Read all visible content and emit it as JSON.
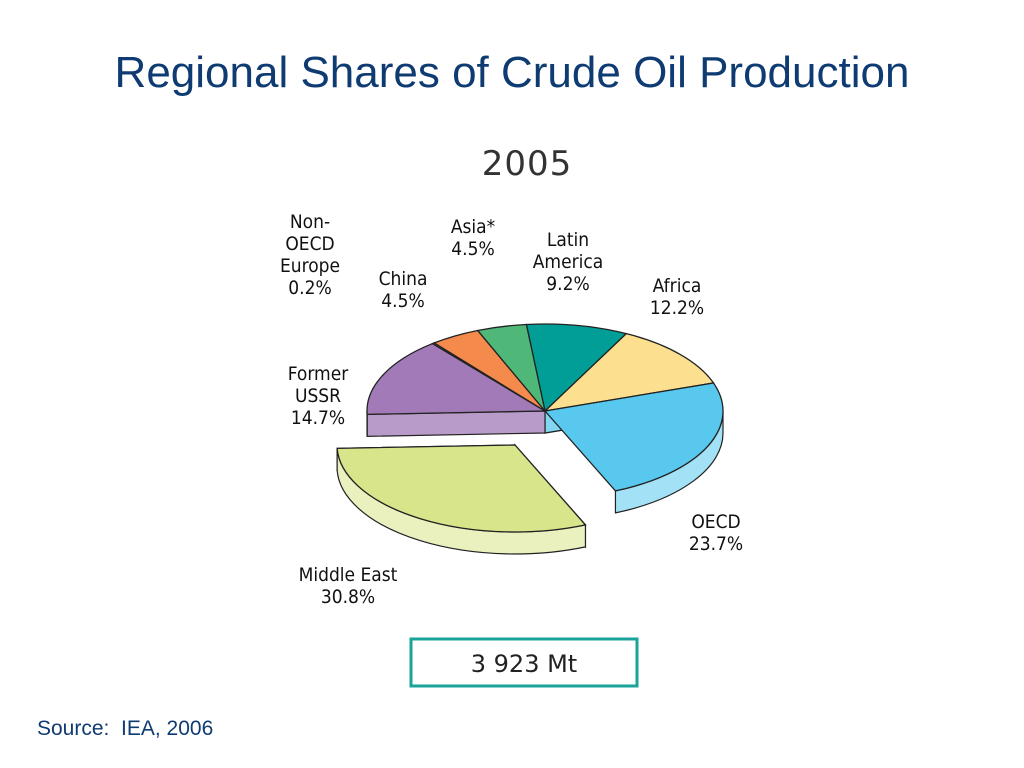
{
  "slide": {
    "title": "Regional Shares of Crude Oil Production",
    "source": "Source:  IEA, 2006"
  },
  "chart_data": {
    "type": "pie",
    "title": "2005",
    "total_label": "3 923 Mt",
    "exploded": "Middle East",
    "slices": [
      {
        "label_lines": [
          "Latin",
          "America",
          "9.2%"
        ],
        "value": 9.2,
        "color": "#009e96"
      },
      {
        "label_lines": [
          "Africa",
          "12.2%"
        ],
        "value": 12.2,
        "color": "#fde08f"
      },
      {
        "label_lines": [
          "OECD",
          "23.7%"
        ],
        "value": 23.7,
        "color": "#58c8ee"
      },
      {
        "label_lines": [
          "Middle East",
          "30.8%"
        ],
        "value": 30.8,
        "color": "#d9e58a"
      },
      {
        "label_lines": [
          "Former",
          "USSR",
          "14.7%"
        ],
        "value": 14.7,
        "color": "#a27ab7"
      },
      {
        "label_lines": [
          "Non-",
          "OECD",
          "Europe",
          "0.2%"
        ],
        "value": 0.2,
        "color": "#ec9bb4"
      },
      {
        "label_lines": [
          "China",
          "4.5%"
        ],
        "value": 4.5,
        "color": "#f48a4c"
      },
      {
        "label_lines": [
          "Asia*",
          "4.5%"
        ],
        "value": 4.5,
        "color": "#4fb879"
      }
    ],
    "colors": {
      "outline": "#222222",
      "total_box_border": "#19a39a",
      "label_text": "#111111"
    }
  }
}
